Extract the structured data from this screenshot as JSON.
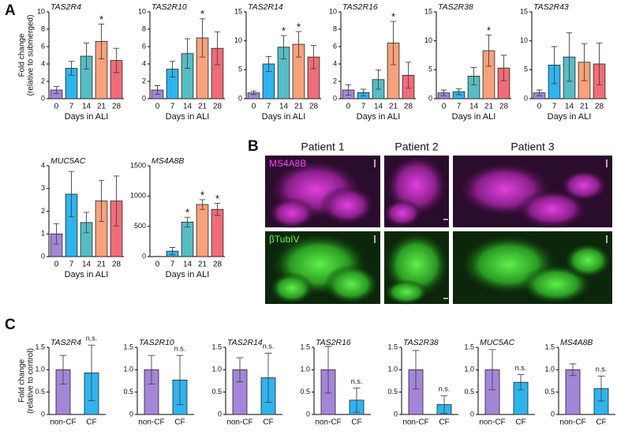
{
  "panel_labels": [
    "A",
    "B",
    "C"
  ],
  "micrographs": {
    "columns": [
      "Patient 1",
      "Patient 2",
      "Patient 3"
    ],
    "rows": [
      "MS4A8B",
      "βTubIV"
    ]
  },
  "chart_data": [
    {
      "type": "bar",
      "title": "TAS2R4",
      "ylabel": [
        "Fold change",
        "(relative to submerged)"
      ],
      "xlabel": "Days in ALI",
      "categories": [
        "0",
        "7",
        "14",
        "21",
        "28"
      ],
      "colors": [
        "#a486d8",
        "#2fb4ee",
        "#58bcc4",
        "#f8a27c",
        "#f06c78"
      ],
      "values": [
        1,
        3.5,
        4.9,
        6.6,
        4.4
      ],
      "errors": [
        0.4,
        0.8,
        1.5,
        2,
        1.4
      ],
      "ylim": [
        0,
        10
      ],
      "yticks": [
        0,
        2,
        4,
        6,
        8,
        10
      ],
      "annotations": [
        {
          "x": "21",
          "text": "*"
        }
      ]
    },
    {
      "type": "bar",
      "title": "TAS2R10",
      "xlabel": "Days in ALI",
      "categories": [
        "0",
        "7",
        "14",
        "21",
        "28"
      ],
      "colors": [
        "#a486d8",
        "#2fb4ee",
        "#58bcc4",
        "#f8a27c",
        "#f06c78"
      ],
      "values": [
        1,
        3.4,
        5.2,
        7,
        5.8
      ],
      "errors": [
        0.5,
        0.9,
        1.7,
        2.2,
        1.9
      ],
      "ylim": [
        0,
        10
      ],
      "yticks": [
        0,
        2,
        4,
        6,
        8,
        10
      ],
      "annotations": [
        {
          "x": "21",
          "text": "*"
        }
      ]
    },
    {
      "type": "bar",
      "title": "TAS2R14",
      "xlabel": "Days in ALI",
      "categories": [
        "0",
        "7",
        "14",
        "21",
        "28"
      ],
      "colors": [
        "#a486d8",
        "#2fb4ee",
        "#58bcc4",
        "#f8a27c",
        "#f06c78"
      ],
      "values": [
        1,
        6,
        8.9,
        9.4,
        7.2
      ],
      "errors": [
        0.3,
        1.3,
        2,
        2.2,
        2
      ],
      "ylim": [
        0,
        15
      ],
      "yticks": [
        0,
        5,
        10,
        15
      ],
      "annotations": [
        {
          "x": "14",
          "text": "*"
        },
        {
          "x": "21",
          "text": "*"
        }
      ]
    },
    {
      "type": "bar",
      "title": "TAS2R16",
      "xlabel": "Days in ALI",
      "categories": [
        "0",
        "7",
        "14",
        "21",
        "28"
      ],
      "colors": [
        "#a486d8",
        "#2fb4ee",
        "#58bcc4",
        "#f8a27c",
        "#f06c78"
      ],
      "values": [
        1,
        0.7,
        2.2,
        6.4,
        2.7
      ],
      "errors": [
        0.6,
        0.4,
        1.1,
        2.5,
        1.5
      ],
      "ylim": [
        0,
        10
      ],
      "yticks": [
        0,
        2,
        4,
        6,
        8,
        10
      ],
      "annotations": [
        {
          "x": "21",
          "text": "*"
        }
      ]
    },
    {
      "type": "bar",
      "title": "TAS2R38",
      "xlabel": "Days in ALI",
      "categories": [
        "0",
        "7",
        "14",
        "21",
        "28"
      ],
      "colors": [
        "#a486d8",
        "#2fb4ee",
        "#58bcc4",
        "#f8a27c",
        "#f06c78"
      ],
      "values": [
        1,
        1.2,
        3.9,
        8.3,
        5.3
      ],
      "errors": [
        0.5,
        0.5,
        1.5,
        2.7,
        2.2
      ],
      "ylim": [
        0,
        15
      ],
      "yticks": [
        0,
        5,
        10,
        15
      ],
      "annotations": [
        {
          "x": "21",
          "text": "*"
        }
      ]
    },
    {
      "type": "bar",
      "title": "TAS2R43",
      "xlabel": "Days in ALI",
      "categories": [
        "0",
        "7",
        "14",
        "21",
        "28"
      ],
      "colors": [
        "#a486d8",
        "#2fb4ee",
        "#58bcc4",
        "#f8a27c",
        "#f06c78"
      ],
      "values": [
        1,
        5.8,
        7.2,
        6.3,
        6
      ],
      "errors": [
        0.5,
        3.2,
        4.2,
        3.2,
        3.6
      ],
      "ylim": [
        0,
        15
      ],
      "yticks": [
        0,
        5,
        10,
        15
      ]
    },
    {
      "type": "bar",
      "title": "MUC5AC",
      "xlabel": "Days in ALI",
      "categories": [
        "0",
        "7",
        "14",
        "21",
        "28"
      ],
      "colors": [
        "#a486d8",
        "#2fb4ee",
        "#58bcc4",
        "#f8a27c",
        "#f06c78"
      ],
      "values": [
        1,
        2.75,
        1.5,
        2.45,
        2.45
      ],
      "errors": [
        0.45,
        1,
        0.45,
        0.9,
        1.1
      ],
      "ylim": [
        0,
        4
      ],
      "yticks": [
        0,
        1,
        2,
        3,
        4
      ]
    },
    {
      "type": "bar",
      "title": "MS4A8B",
      "xlabel": "Days in ALI",
      "categories": [
        "0",
        "7",
        "14",
        "21",
        "28"
      ],
      "colors": [
        "#a486d8",
        "#2fb4ee",
        "#58bcc4",
        "#f8a27c",
        "#f06c78"
      ],
      "values": [
        0,
        90,
        570,
        860,
        780
      ],
      "errors": [
        5,
        60,
        80,
        80,
        100
      ],
      "ylim": [
        0,
        1500
      ],
      "yticks": [
        0,
        500,
        1000,
        1500
      ],
      "annotations": [
        {
          "x": "14",
          "text": "*"
        },
        {
          "x": "21",
          "text": "*"
        },
        {
          "x": "28",
          "text": "*"
        }
      ]
    },
    {
      "type": "bar",
      "title": "TAS2R4",
      "ylabel": [
        "Fold change",
        "(relative to control)"
      ],
      "categories": [
        "non-CF",
        "CF"
      ],
      "colors": [
        "#a486d8",
        "#2fb4ee"
      ],
      "values": [
        1,
        0.93
      ],
      "errors": [
        0.32,
        0.62
      ],
      "ylim": [
        0,
        1.5
      ],
      "yticks": [
        0,
        0.5,
        {
          "value": 1,
          "label": "1.0"
        },
        1.5
      ],
      "annotations": [
        {
          "x": "CF",
          "text": "n.s."
        }
      ]
    },
    {
      "type": "bar",
      "title": "TAS2R10",
      "categories": [
        "non-CF",
        "CF"
      ],
      "colors": [
        "#a486d8",
        "#2fb4ee"
      ],
      "values": [
        1,
        0.77
      ],
      "errors": [
        0.32,
        0.55
      ],
      "ylim": [
        0,
        1.5
      ],
      "yticks": [
        0,
        0.5,
        {
          "value": 1,
          "label": "1.0"
        },
        1.5
      ],
      "annotations": [
        {
          "x": "CF",
          "text": "n.s."
        }
      ]
    },
    {
      "type": "bar",
      "title": "TAS2R14",
      "categories": [
        "non-CF",
        "CF"
      ],
      "colors": [
        "#a486d8",
        "#2fb4ee"
      ],
      "values": [
        1,
        0.82
      ],
      "errors": [
        0.27,
        0.55
      ],
      "ylim": [
        0,
        1.5
      ],
      "yticks": [
        0,
        0.5,
        {
          "value": 1,
          "label": "1.0"
        },
        1.5
      ],
      "annotations": [
        {
          "x": "CF",
          "text": "n.s."
        }
      ]
    },
    {
      "type": "bar",
      "title": "TAS2R16",
      "categories": [
        "non-CF",
        "CF"
      ],
      "colors": [
        "#a486d8",
        "#2fb4ee"
      ],
      "values": [
        1,
        0.32
      ],
      "errors": [
        0.52,
        0.27
      ],
      "ylim": [
        0,
        1.5
      ],
      "yticks": [
        0,
        0.5,
        {
          "value": 1,
          "label": "1.0"
        },
        1.5
      ],
      "annotations": [
        {
          "x": "CF",
          "text": "n.s."
        }
      ]
    },
    {
      "type": "bar",
      "title": "TAS2R38",
      "categories": [
        "non-CF",
        "CF"
      ],
      "colors": [
        "#a486d8",
        "#2fb4ee"
      ],
      "values": [
        1,
        0.22
      ],
      "errors": [
        0.43,
        0.2
      ],
      "ylim": [
        0,
        1.5
      ],
      "yticks": [
        0,
        0.5,
        {
          "value": 1,
          "label": "1.0"
        },
        1.5
      ],
      "annotations": [
        {
          "x": "CF",
          "text": "n.s."
        }
      ]
    },
    {
      "type": "bar",
      "title": "MUC5AC",
      "categories": [
        "non-CF",
        "CF"
      ],
      "colors": [
        "#a486d8",
        "#2fb4ee"
      ],
      "values": [
        1,
        0.72
      ],
      "errors": [
        0.45,
        0.17
      ],
      "ylim": [
        0,
        1.5
      ],
      "yticks": [
        0,
        0.5,
        {
          "value": 1,
          "label": "1.0"
        },
        1.5
      ],
      "annotations": [
        {
          "x": "CF",
          "text": "n.s."
        }
      ]
    },
    {
      "type": "bar",
      "title": "MS4A8B",
      "categories": [
        "non-CF",
        "CF"
      ],
      "colors": [
        "#a486d8",
        "#2fb4ee"
      ],
      "values": [
        1,
        0.58
      ],
      "errors": [
        0.13,
        0.28
      ],
      "ylim": [
        0,
        1.5
      ],
      "yticks": [
        0,
        0.5,
        {
          "value": 1,
          "label": "1.0"
        },
        1.5
      ],
      "annotations": [
        {
          "x": "CF",
          "text": "n.s."
        }
      ]
    }
  ]
}
